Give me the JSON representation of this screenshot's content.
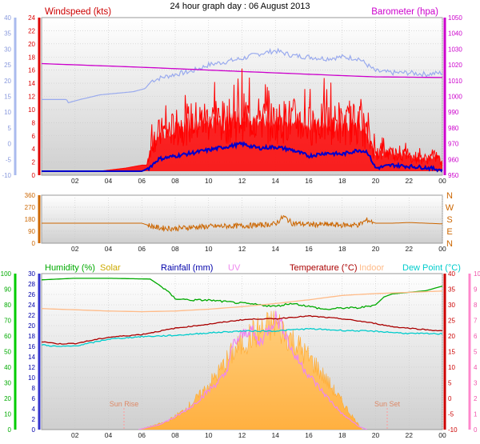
{
  "title": "24 hour graph day : 06 August 2013",
  "chart_data": [
    {
      "type": "line",
      "panel": "wind-barometer",
      "legend": [
        "Windspeed (kts)",
        "Barometer (hpa)"
      ],
      "x_ticks": [
        "02",
        "04",
        "06",
        "08",
        "10",
        "12",
        "14",
        "16",
        "18",
        "20",
        "22",
        "00"
      ],
      "xlim_hours": [
        0,
        24
      ],
      "axes": {
        "outer_left": {
          "range": [
            -10,
            40
          ],
          "ticks": [
            "40",
            "35",
            "30",
            "25",
            "20",
            "15",
            "10",
            "5",
            "0",
            "-5",
            "-10"
          ]
        },
        "inner_left": {
          "range": [
            0,
            25
          ],
          "ticks": [
            "24",
            "22",
            "20",
            "18",
            "16",
            "14",
            "12",
            "10",
            "8",
            "6",
            "4",
            "2",
            "0"
          ]
        },
        "right": {
          "range": [
            950,
            1050
          ],
          "ticks": [
            "1050",
            "1040",
            "1030",
            "1020",
            "1010",
            "1000",
            "990",
            "980",
            "970",
            "960",
            "950"
          ]
        }
      },
      "series": [
        {
          "name": "Barometer (hpa)",
          "color": "#cc00cc",
          "x": [
            0,
            6,
            12,
            18,
            20,
            24
          ],
          "y": [
            1020.8,
            1018.5,
            1015.8,
            1013.2,
            1012.4,
            1012.0
          ]
        },
        {
          "name": "",
          "color": "#99aaee",
          "note_axis": "outer_left",
          "x": [
            0,
            1.5,
            1.6,
            2.3,
            3.5,
            5.5,
            6.2,
            6.6,
            7.2,
            8,
            9,
            10,
            11,
            12,
            13,
            14,
            15,
            16,
            17,
            18,
            19,
            19.5,
            20,
            21,
            22,
            23,
            24
          ],
          "y": [
            14,
            14,
            13,
            14,
            15.5,
            16.5,
            17.5,
            20,
            21,
            22,
            23,
            25,
            26,
            27,
            28.5,
            29.5,
            28,
            27.5,
            27,
            27.5,
            27,
            25,
            23,
            22.5,
            22.5,
            22,
            22.5
          ]
        },
        {
          "name": "Windspeed (kts)",
          "color": "#ff0000",
          "x": [
            0,
            3.5,
            5,
            6,
            6.3,
            6.6,
            7,
            8,
            9,
            10,
            11,
            12,
            13,
            14,
            15,
            16,
            17,
            18,
            19,
            19.5,
            20,
            21,
            22,
            23,
            23.7,
            24
          ],
          "y": [
            0,
            0,
            0.5,
            1,
            1,
            5,
            6,
            7,
            8,
            8.5,
            8,
            9,
            8.5,
            8,
            8.5,
            7.5,
            8,
            7.5,
            8,
            6,
            3,
            3,
            2.5,
            2,
            2.5,
            1
          ]
        },
        {
          "name": "",
          "color": "#0000cc",
          "x": [
            0,
            6,
            6.4,
            7,
            8,
            9,
            10,
            11,
            12,
            13,
            14,
            15,
            16,
            17,
            18,
            19,
            19.5,
            20,
            21,
            22,
            23,
            24
          ],
          "y": [
            0,
            0,
            0.5,
            2,
            2.5,
            3,
            3.5,
            4,
            4.5,
            3.8,
            4,
            3.5,
            2.5,
            3,
            2.8,
            3.5,
            3.2,
            0.5,
            1,
            0.8,
            0.6,
            0.2
          ]
        }
      ]
    },
    {
      "type": "scatter",
      "panel": "wind-direction",
      "x_ticks": [
        "02",
        "04",
        "06",
        "08",
        "10",
        "12",
        "14",
        "16",
        "18",
        "20",
        "22",
        "00"
      ],
      "y_ticks": [
        "360",
        "270",
        "180",
        "90",
        "0"
      ],
      "y_compass": [
        "N",
        "W",
        "S",
        "E",
        "N"
      ],
      "ylim": [
        0,
        360
      ],
      "series": [
        {
          "name": "",
          "color": "#cc6600",
          "x": [
            0,
            4,
            6,
            6.5,
            7,
            8,
            9,
            10,
            11,
            12,
            13,
            14,
            14.5,
            15,
            16,
            17,
            18,
            19,
            19.5,
            20,
            21,
            22,
            23,
            24
          ],
          "y": [
            150,
            150,
            150,
            130,
            115,
            110,
            120,
            125,
            128,
            130,
            135,
            145,
            200,
            150,
            140,
            140,
            135,
            138,
            175,
            150,
            150,
            155,
            150,
            145
          ]
        }
      ]
    },
    {
      "type": "line",
      "panel": "temp-humidity",
      "legend": [
        "Humidity (%)",
        "Solar",
        "Rainfall (mm)",
        "UV",
        "Temperature (°C)",
        "Indoor",
        "Dew Point (°C)"
      ],
      "legend_colors": [
        "#00aa00",
        "#ccaa00",
        "#0000aa",
        "#ee88ee",
        "#aa0000",
        "#ffbb88",
        "#00cccc"
      ],
      "x_ticks": [
        "02",
        "04",
        "06",
        "08",
        "10",
        "12",
        "14",
        "16",
        "18",
        "20",
        "22",
        "00"
      ],
      "annotations": [
        "Sun Rise",
        "Sun Set"
      ],
      "axes": {
        "humidity": {
          "ticks": [
            "100",
            "90",
            "80",
            "70",
            "60",
            "50",
            "40",
            "30",
            "20",
            "10",
            "0"
          ]
        },
        "rainfall": {
          "ticks": [
            "30",
            "28",
            "26",
            "24",
            "22",
            "20",
            "18",
            "16",
            "14",
            "12",
            "10",
            "8",
            "6",
            "4",
            "2",
            "0"
          ]
        },
        "temperature": {
          "range": [
            -10,
            40
          ],
          "ticks": [
            "40",
            "35",
            "30",
            "25",
            "20",
            "15",
            "10",
            "5",
            "0",
            "-5",
            "-10"
          ]
        },
        "uv": {
          "range": [
            0,
            10
          ],
          "ticks": [
            "10",
            "9",
            "8",
            "7",
            "6",
            "5",
            "4",
            "3",
            "2",
            "1",
            "0"
          ]
        }
      },
      "series": [
        {
          "name": "Solar",
          "color": "#ffc060",
          "x": [
            5.8,
            6.5,
            7.5,
            8.5,
            9.5,
            10.5,
            11.5,
            12.5,
            13.5,
            14,
            14.5,
            15.5,
            16.5,
            17.5,
            18.5,
            19.2
          ],
          "y_uv_units": [
            0,
            0.2,
            0.5,
            1.2,
            2.2,
            3.5,
            5,
            6,
            6.5,
            6.8,
            6.3,
            5.2,
            4,
            2.5,
            1,
            0
          ]
        },
        {
          "name": "UV",
          "color": "#ee88ee",
          "x": [
            5.8,
            7,
            8,
            9,
            10,
            11,
            11.5,
            12,
            12.5,
            13,
            13.5,
            14,
            14.5,
            15,
            16,
            17,
            18,
            19,
            19.5
          ],
          "y": [
            0,
            0.3,
            0.8,
            1.5,
            2.5,
            3.5,
            5.5,
            6,
            6.5,
            5.5,
            6.3,
            7.2,
            6.5,
            5,
            3.5,
            2.2,
            1,
            0.2,
            0
          ]
        },
        {
          "name": "Humidity (%)",
          "color": "#00aa00",
          "x": [
            0,
            2,
            4,
            6.5,
            7,
            7.5,
            8,
            9,
            10,
            11,
            12,
            13,
            14,
            15,
            16,
            17,
            18,
            19,
            20,
            20.5,
            21,
            22,
            23,
            24
          ],
          "y": [
            96,
            97,
            97,
            96.5,
            93,
            89,
            84,
            83,
            83,
            82,
            81,
            80,
            79,
            81,
            79,
            77,
            78,
            78,
            80,
            85,
            87,
            88,
            89,
            92
          ]
        },
        {
          "name": "Indoor",
          "color": "#ffbb88",
          "x": [
            0,
            2,
            4,
            6,
            8,
            10,
            12,
            14,
            16,
            18,
            20,
            22,
            24
          ],
          "y": [
            28.8,
            28.4,
            28,
            27.8,
            28,
            28.6,
            29.4,
            30.4,
            31.6,
            33,
            33.6,
            34,
            34.4
          ]
        },
        {
          "name": "Temperature (°C)",
          "color": "#aa0000",
          "x": [
            0,
            1,
            2,
            3,
            4,
            6,
            8,
            10,
            12,
            13,
            14,
            15,
            16,
            18,
            19,
            20,
            21,
            22,
            24
          ],
          "y": [
            18.2,
            17.5,
            17.6,
            18.6,
            19.6,
            20.5,
            22.5,
            23.8,
            25.2,
            25.5,
            25.5,
            26,
            26.4,
            25.5,
            24.8,
            24,
            23,
            22.5,
            21.6
          ]
        },
        {
          "name": "Dew Point (°C)",
          "color": "#00cccc",
          "x": [
            0,
            1,
            2,
            3,
            4,
            6,
            8,
            10,
            12,
            14,
            15,
            16,
            18,
            20,
            22,
            24
          ],
          "y": [
            17.2,
            16.6,
            16.8,
            17.8,
            19,
            19.8,
            20.2,
            21,
            21.6,
            21.6,
            22,
            22.3,
            21.8,
            21.5,
            20.8,
            20.7
          ]
        }
      ]
    }
  ]
}
